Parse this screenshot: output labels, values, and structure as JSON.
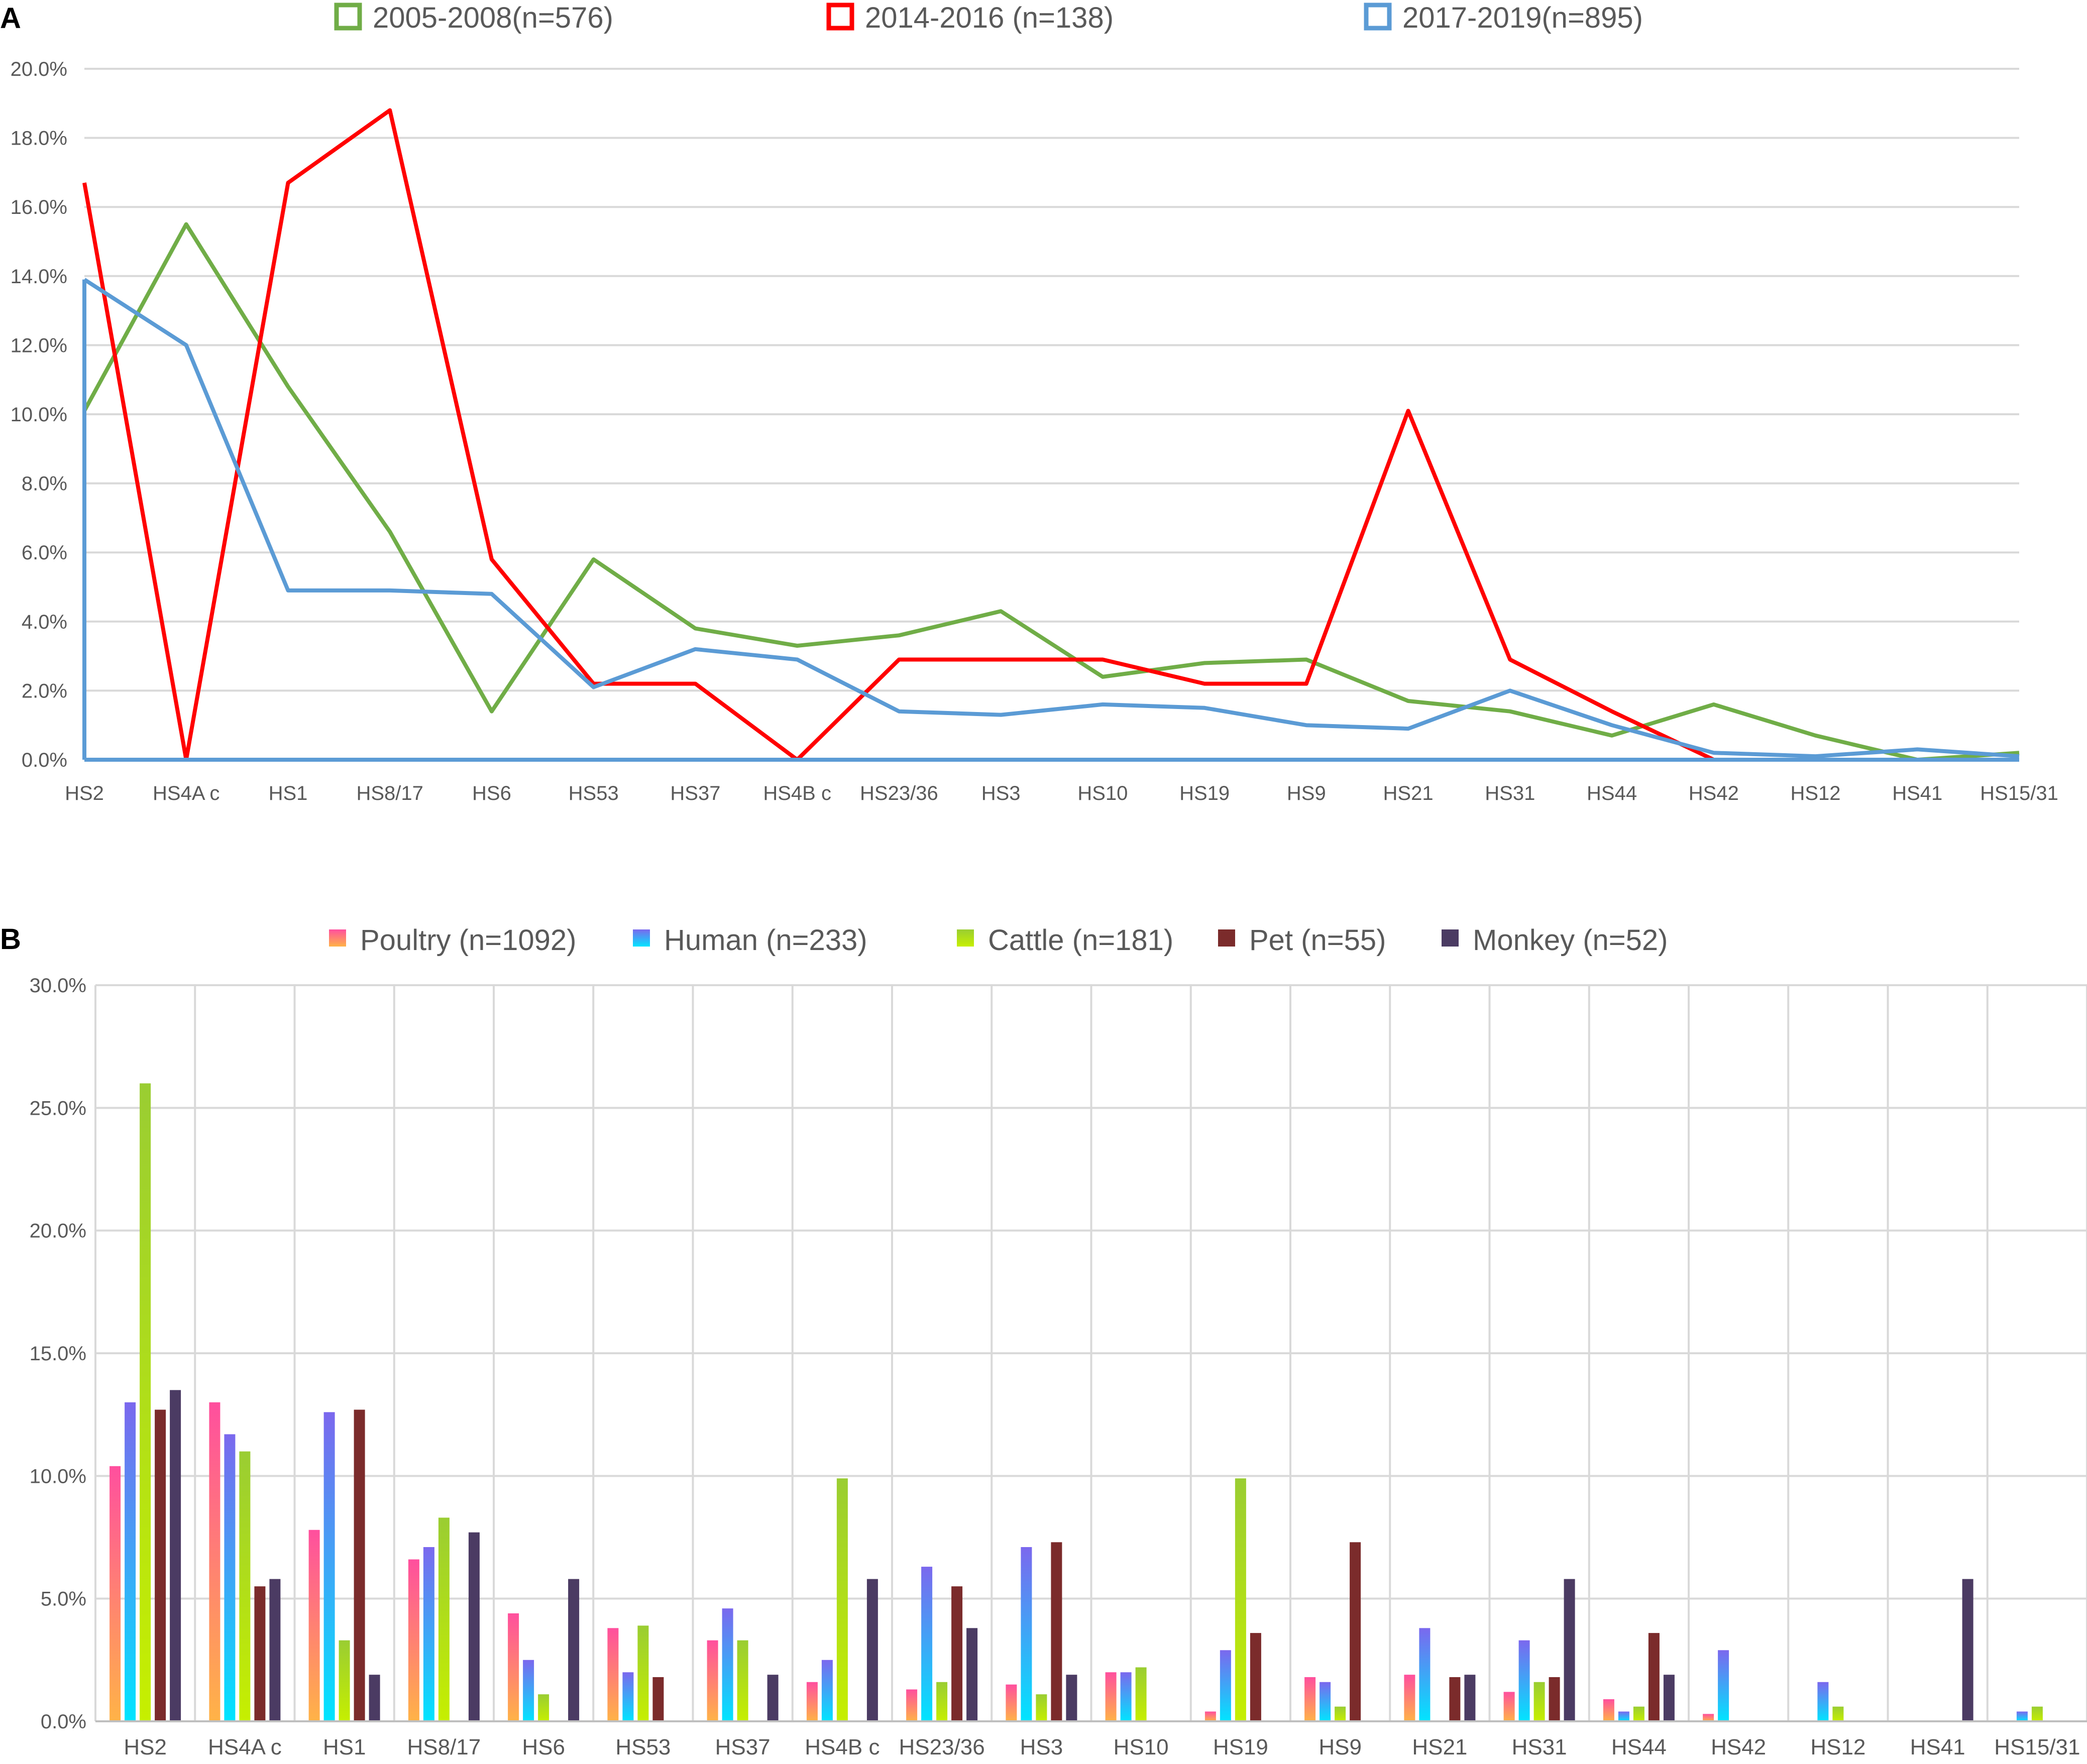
{
  "colors": {
    "green": "#70ad47",
    "red": "#ff0000",
    "blue": "#5b9bd5",
    "poultry": [
      "#ff4f9e",
      "#ffb347"
    ],
    "human": [
      "#7b68ee",
      "#00e5ff"
    ],
    "cattle": [
      "#9acd32",
      "#c6ef00"
    ],
    "pet": "#7b2b2b",
    "monkey": "#4b3b63"
  },
  "chart_data": [
    {
      "panel": "A",
      "type": "line",
      "categories": [
        "HS2",
        "HS4A c",
        "HS1",
        "HS8/17",
        "HS6",
        "HS53",
        "HS37",
        "HS4B c",
        "HS23/36",
        "HS3",
        "HS10",
        "HS19",
        "HS9",
        "HS21",
        "HS31",
        "HS44",
        "HS42",
        "HS12",
        "HS41",
        "HS15/31"
      ],
      "ylim": [
        0,
        20
      ],
      "yticks": [
        "0.0%",
        "2.0%",
        "4.0%",
        "6.0%",
        "8.0%",
        "10.0%",
        "12.0%",
        "14.0%",
        "16.0%",
        "18.0%",
        "20.0%"
      ],
      "grid": true,
      "legend_position": "top",
      "series": [
        {
          "name": "2005-2008(n=576)",
          "color": "#70ad47",
          "values": [
            10.1,
            15.5,
            10.8,
            6.6,
            1.4,
            5.8,
            3.8,
            3.3,
            3.6,
            4.3,
            2.4,
            2.8,
            2.9,
            1.7,
            1.4,
            0.7,
            1.6,
            0.7,
            0.0,
            0.2
          ]
        },
        {
          "name": "2014-2016  (n=138)",
          "color": "#ff0000",
          "values": [
            16.7,
            0.0,
            16.7,
            18.8,
            5.8,
            2.2,
            2.2,
            0.0,
            2.9,
            2.9,
            2.9,
            2.2,
            2.2,
            10.1,
            2.9,
            1.4,
            0.0,
            null,
            null,
            null
          ]
        },
        {
          "name": "2017-2019(n=895)",
          "color": "#5b9bd5",
          "values": [
            13.9,
            12.0,
            4.9,
            4.9,
            4.8,
            2.1,
            3.2,
            2.9,
            1.4,
            1.3,
            1.6,
            1.5,
            1.0,
            0.9,
            2.0,
            1.0,
            0.2,
            0.1,
            0.3,
            0.1
          ]
        }
      ]
    },
    {
      "panel": "B",
      "type": "bar",
      "categories": [
        "HS2",
        "HS4A c",
        "HS1",
        "HS8/17",
        "HS6",
        "HS53",
        "HS37",
        "HS4B c",
        "HS23/36",
        "HS3",
        "HS10",
        "HS19",
        "HS9",
        "HS21",
        "HS31",
        "HS44",
        "HS42",
        "HS12",
        "HS41",
        "HS15/31"
      ],
      "ylim": [
        0,
        30
      ],
      "yticks": [
        "0.0%",
        "5.0%",
        "10.0%",
        "15.0%",
        "20.0%",
        "25.0%",
        "30.0%"
      ],
      "grid": true,
      "legend_position": "top",
      "series": [
        {
          "name": "Poultry (n=1092)",
          "values": [
            10.4,
            13.0,
            7.8,
            6.6,
            4.4,
            3.8,
            3.3,
            1.6,
            1.3,
            1.5,
            2.0,
            0.4,
            1.8,
            1.9,
            1.2,
            0.9,
            0.3,
            0.0,
            0.0,
            0.0
          ]
        },
        {
          "name": "Human (n=233)",
          "values": [
            13.0,
            11.7,
            12.6,
            7.1,
            2.5,
            2.0,
            4.6,
            2.5,
            6.3,
            7.1,
            2.0,
            2.9,
            1.6,
            3.8,
            3.3,
            0.4,
            2.9,
            1.6,
            0.0,
            0.4
          ]
        },
        {
          "name": "Cattle (n=181)",
          "values": [
            26.0,
            11.0,
            3.3,
            8.3,
            1.1,
            3.9,
            3.3,
            9.9,
            1.6,
            1.1,
            2.2,
            9.9,
            0.6,
            0.0,
            1.6,
            0.6,
            0.0,
            0.6,
            0.0,
            0.6
          ]
        },
        {
          "name": "Pet (n=55)",
          "values": [
            12.7,
            5.5,
            12.7,
            0.0,
            0.0,
            1.8,
            0.0,
            0.0,
            5.5,
            7.3,
            0.0,
            3.6,
            7.3,
            1.8,
            1.8,
            3.6,
            0.0,
            0.0,
            0.0,
            0.0
          ]
        },
        {
          "name": "Monkey (n=52)",
          "values": [
            13.5,
            5.8,
            1.9,
            7.7,
            5.8,
            0.0,
            1.9,
            5.8,
            3.8,
            1.9,
            0.0,
            0.0,
            0.0,
            1.9,
            5.8,
            1.9,
            0.0,
            0.0,
            5.8,
            0.0
          ]
        }
      ]
    }
  ],
  "labels": {
    "panelA": "A",
    "panelB": "B"
  }
}
